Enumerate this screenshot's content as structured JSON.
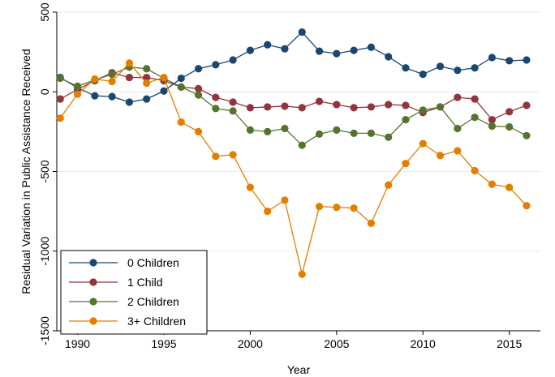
{
  "chart_data": {
    "type": "line",
    "title": "",
    "xlabel": "Year",
    "ylabel": "Residual Variation in Public Assistance Received",
    "xlim": [
      1988.8,
      2016.8
    ],
    "ylim": [
      -1500,
      500
    ],
    "xticks": [
      1990,
      1995,
      2000,
      2005,
      2010,
      2015
    ],
    "yticks": [
      500,
      0,
      -500,
      -1000,
      -1500
    ],
    "xtick_labels": [
      "1990",
      "1995",
      "2000",
      "2005",
      "2010",
      "2015"
    ],
    "ytick_labels": [
      "500",
      "0",
      "-500",
      "-1000",
      "-1500"
    ],
    "grid": "horizontal",
    "legend_position": "bottom-left",
    "x": [
      1989,
      1990,
      1991,
      1992,
      1993,
      1994,
      1995,
      1996,
      1997,
      1998,
      1999,
      2000,
      2001,
      2002,
      2003,
      2004,
      2005,
      2006,
      2007,
      2008,
      2009,
      2010,
      2011,
      2012,
      2013,
      2014,
      2015,
      2016
    ],
    "series": [
      {
        "name": "0 Children",
        "color": "#1a476f",
        "values": [
          90,
          25,
          -25,
          -30,
          -65,
          -45,
          5,
          85,
          145,
          170,
          200,
          260,
          295,
          270,
          375,
          255,
          240,
          260,
          280,
          220,
          150,
          110,
          160,
          135,
          150,
          215,
          195,
          200
        ]
      },
      {
        "name": "1 Child",
        "color": "#90353b",
        "values": [
          -45,
          15,
          70,
          120,
          90,
          90,
          70,
          30,
          20,
          -35,
          -65,
          -100,
          -95,
          -90,
          -100,
          -60,
          -80,
          -100,
          -95,
          -80,
          -85,
          -130,
          -95,
          -35,
          -45,
          -175,
          -125,
          -85
        ]
      },
      {
        "name": "2 Children",
        "color": "#55752f",
        "values": [
          85,
          35,
          75,
          110,
          155,
          145,
          85,
          30,
          -20,
          -105,
          -120,
          -240,
          -250,
          -230,
          -335,
          -265,
          -240,
          -260,
          -260,
          -285,
          -175,
          -115,
          -95,
          -230,
          -160,
          -215,
          -220,
          -275
        ]
      },
      {
        "name": "3+ Children",
        "color": "#e37e00",
        "values": [
          -165,
          -15,
          80,
          65,
          180,
          55,
          90,
          -190,
          -250,
          -405,
          -395,
          -600,
          -750,
          -680,
          -1145,
          -720,
          -725,
          -730,
          -825,
          -585,
          -450,
          -325,
          -400,
          -370,
          -495,
          -580,
          -600,
          -715
        ]
      }
    ]
  }
}
